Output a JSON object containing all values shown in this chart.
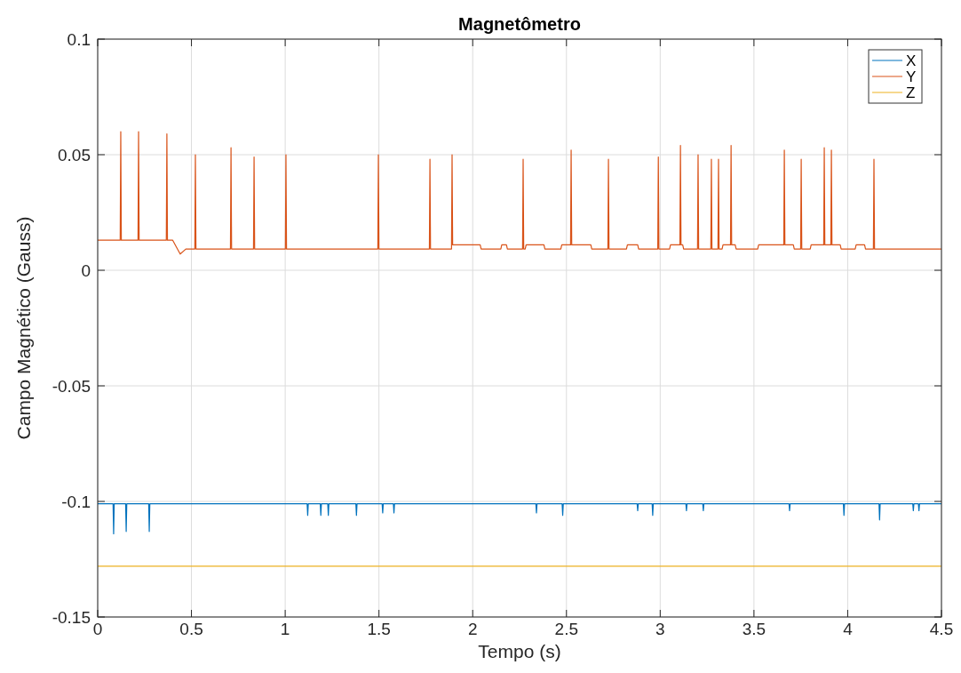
{
  "chart_data": {
    "type": "line",
    "title": "Magnetômetro",
    "xlabel": "Tempo (s)",
    "ylabel": "Campo Magnético (Gauss)",
    "xlim": [
      0,
      4.5
    ],
    "ylim": [
      -0.15,
      0.1
    ],
    "xticks": [
      0,
      0.5,
      1,
      1.5,
      2,
      2.5,
      3,
      3.5,
      4,
      4.5
    ],
    "yticks": [
      -0.15,
      -0.1,
      -0.05,
      0,
      0.05,
      0.1
    ],
    "grid": true,
    "legend": "top right",
    "line_style": "solid",
    "marker": "none",
    "series": [
      {
        "name": "X",
        "color": "#0072bd",
        "x": [
          0,
          0.082,
          0.085,
          0.088,
          0.149,
          0.152,
          0.155,
          0.272,
          0.275,
          0.278,
          1.117,
          1.12,
          1.123,
          1.187,
          1.19,
          1.193,
          1.227,
          1.23,
          1.233,
          1.377,
          1.38,
          1.383,
          1.517,
          1.52,
          1.523,
          1.577,
          1.58,
          1.583,
          2.337,
          2.34,
          2.343,
          2.477,
          2.48,
          2.483,
          2.877,
          2.88,
          2.883,
          2.957,
          2.96,
          2.963,
          3.137,
          3.14,
          3.143,
          3.227,
          3.23,
          3.233,
          3.687,
          3.69,
          3.693,
          3.977,
          3.98,
          3.983,
          4.167,
          4.17,
          4.173,
          4.347,
          4.35,
          4.353,
          4.377,
          4.38,
          4.383,
          4.5
        ],
        "values": [
          -0.101,
          -0.101,
          -0.114,
          -0.101,
          -0.101,
          -0.113,
          -0.101,
          -0.101,
          -0.113,
          -0.101,
          -0.101,
          -0.106,
          -0.101,
          -0.101,
          -0.106,
          -0.101,
          -0.101,
          -0.106,
          -0.101,
          -0.101,
          -0.106,
          -0.101,
          -0.101,
          -0.105,
          -0.101,
          -0.101,
          -0.105,
          -0.101,
          -0.101,
          -0.105,
          -0.101,
          -0.101,
          -0.106,
          -0.101,
          -0.101,
          -0.104,
          -0.101,
          -0.101,
          -0.106,
          -0.101,
          -0.101,
          -0.104,
          -0.101,
          -0.101,
          -0.104,
          -0.101,
          -0.101,
          -0.104,
          -0.101,
          -0.101,
          -0.106,
          -0.101,
          -0.101,
          -0.108,
          -0.101,
          -0.101,
          -0.104,
          -0.101,
          -0.101,
          -0.104,
          -0.101,
          -0.101
        ]
      },
      {
        "name": "Y",
        "color": "#d95319",
        "x": [
          0,
          0.12,
          0.123,
          0.126,
          0.215,
          0.218,
          0.221,
          0.366,
          0.369,
          0.372,
          0.4,
          0.44,
          0.47,
          0.518,
          0.521,
          0.524,
          0.708,
          0.711,
          0.714,
          0.831,
          0.834,
          0.837,
          1.001,
          1.004,
          1.007,
          1.494,
          1.497,
          1.5,
          1.769,
          1.772,
          1.775,
          1.887,
          1.89,
          1.893,
          2.04,
          2.045,
          2.15,
          2.155,
          2.18,
          2.185,
          2.266,
          2.269,
          2.272,
          2.28,
          2.285,
          2.38,
          2.385,
          2.47,
          2.475,
          2.522,
          2.525,
          2.528,
          2.63,
          2.635,
          2.721,
          2.724,
          2.727,
          2.82,
          2.825,
          2.88,
          2.885,
          2.987,
          2.99,
          2.993,
          3.05,
          3.055,
          3.105,
          3.108,
          3.111,
          3.12,
          3.125,
          3.199,
          3.202,
          3.205,
          3.27,
          3.273,
          3.276,
          3.308,
          3.311,
          3.314,
          3.33,
          3.335,
          3.375,
          3.378,
          3.381,
          3.4,
          3.405,
          3.52,
          3.525,
          3.659,
          3.662,
          3.665,
          3.71,
          3.715,
          3.749,
          3.752,
          3.755,
          3.8,
          3.805,
          3.872,
          3.875,
          3.878,
          3.91,
          3.913,
          3.916,
          3.96,
          3.965,
          4.04,
          4.045,
          4.09,
          4.095,
          4.137,
          4.14,
          4.143,
          4.5
        ],
        "values": [
          0.013,
          0.013,
          0.06,
          0.013,
          0.013,
          0.06,
          0.013,
          0.013,
          0.059,
          0.013,
          0.013,
          0.007,
          0.0092,
          0.0092,
          0.05,
          0.0092,
          0.0092,
          0.053,
          0.0092,
          0.0092,
          0.049,
          0.0092,
          0.0092,
          0.05,
          0.0092,
          0.0092,
          0.05,
          0.0092,
          0.0092,
          0.048,
          0.0092,
          0.0092,
          0.05,
          0.011,
          0.011,
          0.0092,
          0.0092,
          0.011,
          0.011,
          0.0092,
          0.0092,
          0.048,
          0.0092,
          0.0092,
          0.011,
          0.011,
          0.0092,
          0.0092,
          0.011,
          0.011,
          0.052,
          0.011,
          0.011,
          0.0092,
          0.0092,
          0.048,
          0.0092,
          0.0092,
          0.011,
          0.011,
          0.0092,
          0.0092,
          0.049,
          0.0092,
          0.0092,
          0.011,
          0.011,
          0.054,
          0.011,
          0.011,
          0.0092,
          0.0092,
          0.05,
          0.0092,
          0.0092,
          0.048,
          0.0092,
          0.0092,
          0.048,
          0.0092,
          0.0092,
          0.011,
          0.011,
          0.054,
          0.011,
          0.011,
          0.0092,
          0.0092,
          0.011,
          0.011,
          0.052,
          0.011,
          0.011,
          0.0092,
          0.0092,
          0.048,
          0.0092,
          0.0092,
          0.011,
          0.011,
          0.053,
          0.011,
          0.011,
          0.052,
          0.011,
          0.011,
          0.0092,
          0.0092,
          0.011,
          0.011,
          0.0092,
          0.0092,
          0.048,
          0.0092,
          0.0092
        ]
      },
      {
        "name": "Z",
        "color": "#edb120",
        "x": [
          0,
          4.5
        ],
        "values": [
          -0.128,
          -0.128
        ]
      }
    ]
  }
}
